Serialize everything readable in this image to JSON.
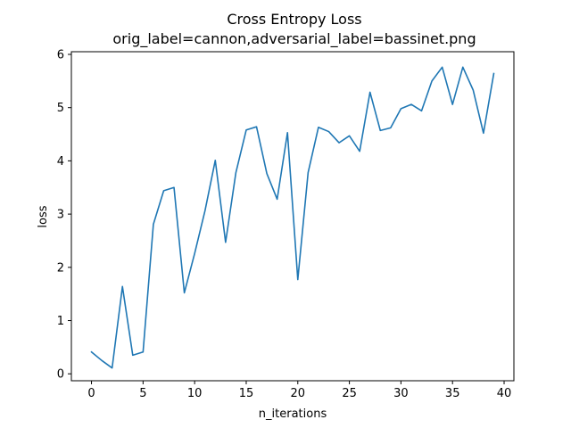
{
  "chart_data": {
    "type": "line",
    "title_lines": [
      "Cross Entropy Loss",
      "orig_label=cannon,adversarial_label=bassinet.png"
    ],
    "xlabel": "n_iterations",
    "ylabel": "loss",
    "xlim": [
      -1.95,
      40.95
    ],
    "ylim": [
      -0.13,
      6.05
    ],
    "xticks": [
      0,
      5,
      10,
      15,
      20,
      25,
      30,
      35,
      40
    ],
    "yticks": [
      0,
      1,
      2,
      3,
      4,
      5,
      6
    ],
    "grid": false,
    "series": [
      {
        "color": "#1f77b4",
        "x": [
          0,
          1,
          2,
          3,
          4,
          5,
          6,
          7,
          8,
          9,
          10,
          11,
          12,
          13,
          14,
          15,
          16,
          17,
          18,
          19,
          20,
          21,
          22,
          23,
          24,
          25,
          26,
          27,
          28,
          29,
          30,
          31,
          32,
          33,
          34,
          35,
          36,
          37,
          38,
          39
        ],
        "values": [
          0.41,
          0.25,
          0.11,
          1.64,
          0.35,
          0.41,
          2.81,
          3.44,
          3.5,
          1.52,
          2.26,
          3.06,
          4.01,
          2.47,
          3.78,
          4.58,
          4.64,
          3.76,
          3.28,
          4.53,
          1.77,
          3.78,
          4.63,
          4.55,
          4.34,
          4.47,
          4.18,
          5.29,
          4.57,
          4.62,
          4.98,
          5.06,
          4.94,
          5.5,
          5.76,
          5.06,
          5.76,
          5.33,
          4.52,
          5.64
        ]
      }
    ]
  }
}
